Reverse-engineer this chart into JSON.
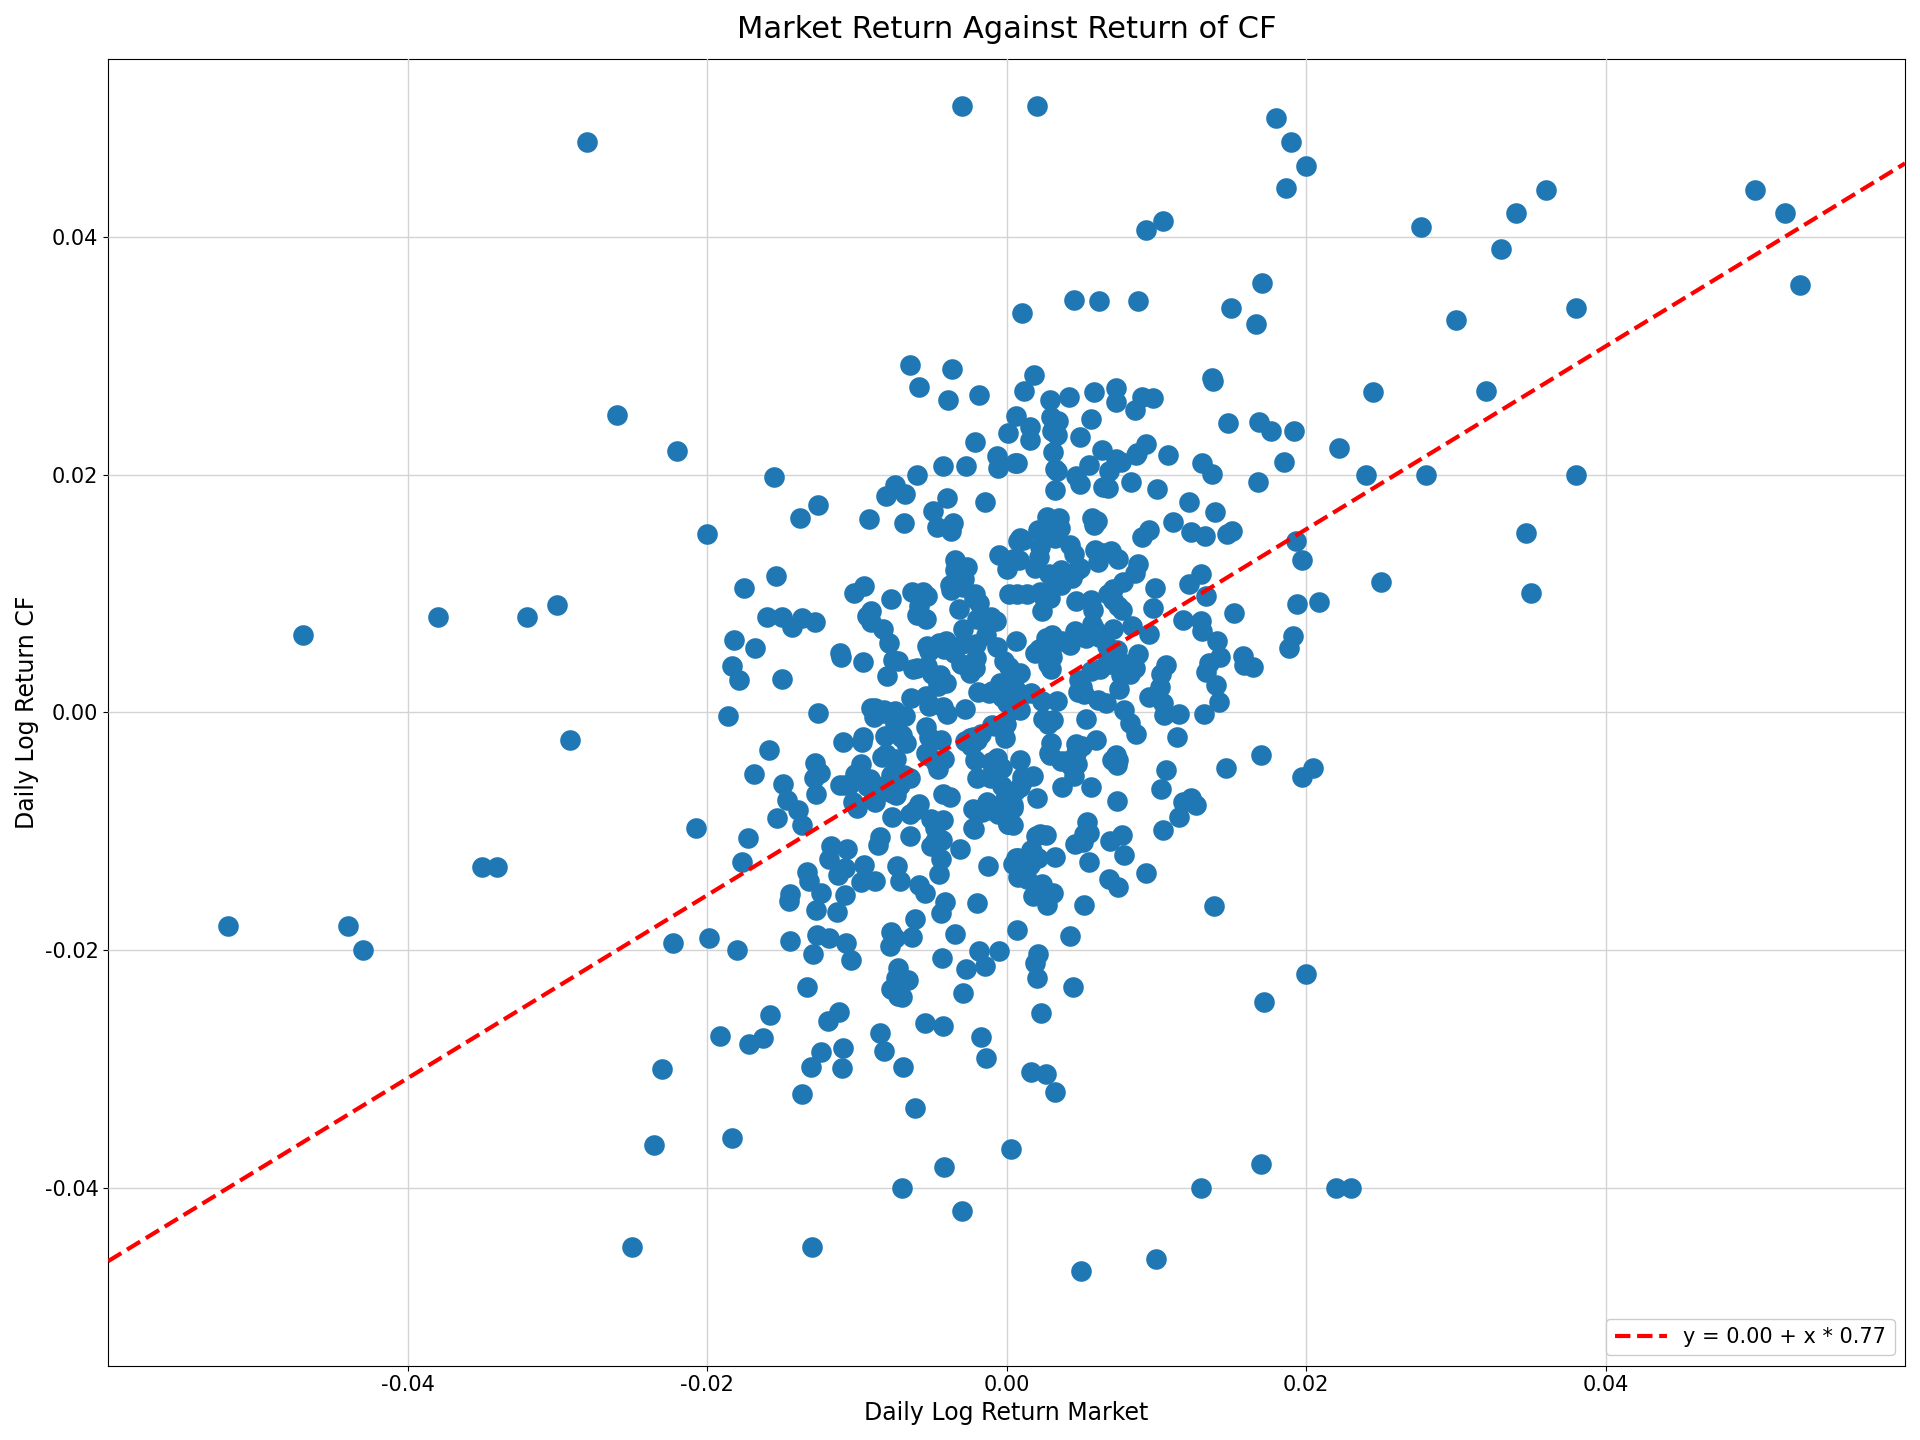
{
  "title": "Market Return Against Return of CF",
  "xlabel": "Daily Log Return Market",
  "ylabel": "Daily Log Return CF",
  "intercept": 0.0,
  "slope": 0.77,
  "legend_label": "y = 0.00 + x * 0.77",
  "dot_color": "#1f77b4",
  "line_color": "red",
  "line_style": "--",
  "marker_size": 220,
  "alpha": 1.0,
  "xlim": [
    -0.06,
    0.06
  ],
  "ylim": [
    -0.055,
    0.055
  ],
  "xticks": [
    -0.04,
    -0.02,
    0.0,
    0.02,
    0.04
  ],
  "yticks": [
    -0.04,
    -0.02,
    0.0,
    0.02,
    0.04
  ],
  "grid": true,
  "title_fontsize": 22,
  "label_fontsize": 17,
  "tick_fontsize": 15,
  "legend_fontsize": 15,
  "seed": 42,
  "n_points": 600,
  "market_std": 0.009,
  "cf_noise_std": 0.013
}
